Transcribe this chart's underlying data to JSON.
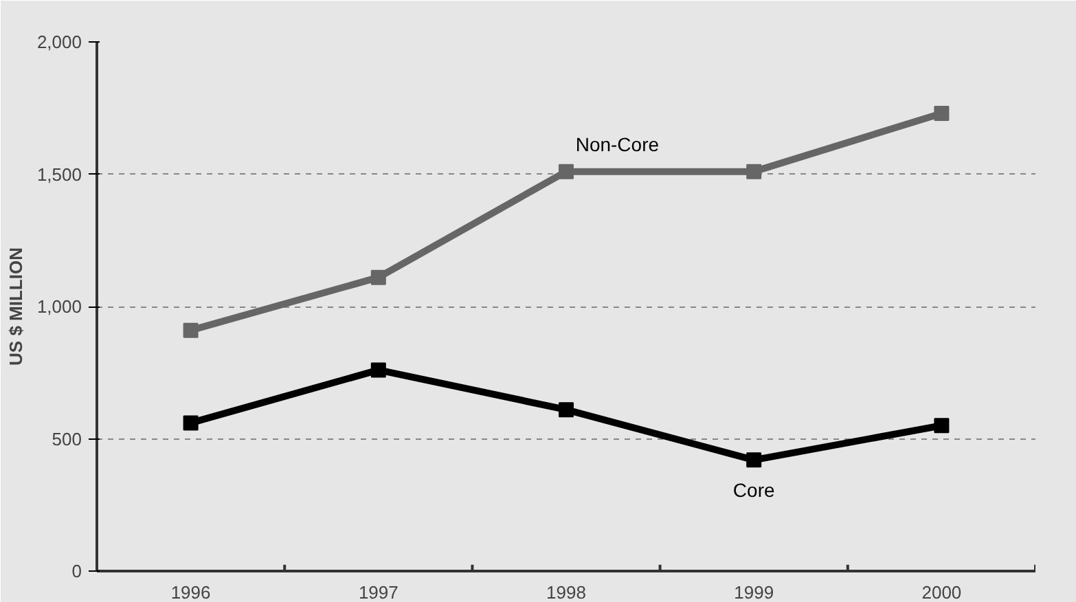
{
  "chart_data": {
    "type": "line",
    "ylabel": "US $ MILLION",
    "categories": [
      "1996",
      "1997",
      "1998",
      "1999",
      "2000"
    ],
    "series": [
      {
        "name": "Non-Core",
        "color": "#666666",
        "values": [
          910,
          1110,
          1510,
          1510,
          1730
        ]
      },
      {
        "name": "Core",
        "color": "#000000",
        "values": [
          560,
          760,
          610,
          420,
          550
        ]
      }
    ],
    "ylim": [
      0,
      2000
    ],
    "yticks": [
      0,
      {
        "value": 500,
        "label": "500"
      },
      {
        "value": 1000,
        "label": "1,000"
      },
      {
        "value": 1500,
        "label": "1,500"
      },
      {
        "value": 2000,
        "label": "2,000"
      }
    ],
    "grid": "y",
    "legend": false,
    "marker": "square",
    "line_style": "solid"
  }
}
